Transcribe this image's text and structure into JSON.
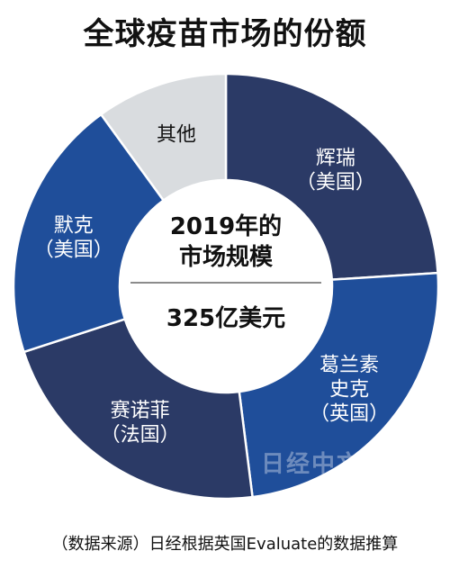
{
  "title": "全球疫苗市场的份额",
  "center": {
    "line1": "2019年的",
    "line2": "市场规模",
    "total": "325亿美元"
  },
  "source": "（数据来源）日经根据英国Evaluate的数据推算",
  "watermark": "日经中文网",
  "colors": {
    "dark_navy": "#2b3a66",
    "medium_blue": "#1f4e9a",
    "light_gray": "#d9dcdf"
  },
  "chart_data": {
    "type": "pie",
    "donut": true,
    "title": "全球疫苗市场的份额",
    "slices": [
      {
        "lines": [
          "辉瑞",
          "（美国）"
        ],
        "value": 24,
        "color": "#2b3a66",
        "text_color": "#ffffff"
      },
      {
        "lines": [
          "葛兰素",
          "史克",
          "（英国）"
        ],
        "value": 24,
        "color": "#1f4e9a",
        "text_color": "#ffffff"
      },
      {
        "lines": [
          "赛诺菲",
          "（法国）"
        ],
        "value": 22,
        "color": "#2b3a66",
        "text_color": "#ffffff"
      },
      {
        "lines": [
          "默克",
          "（美国）"
        ],
        "value": 20,
        "color": "#1f4e9a",
        "text_color": "#ffffff"
      },
      {
        "lines": [
          "其他"
        ],
        "value": 10,
        "color": "#d9dcdf",
        "text_color": "#111111"
      }
    ],
    "units": "%",
    "start_angle_deg": 0
  }
}
